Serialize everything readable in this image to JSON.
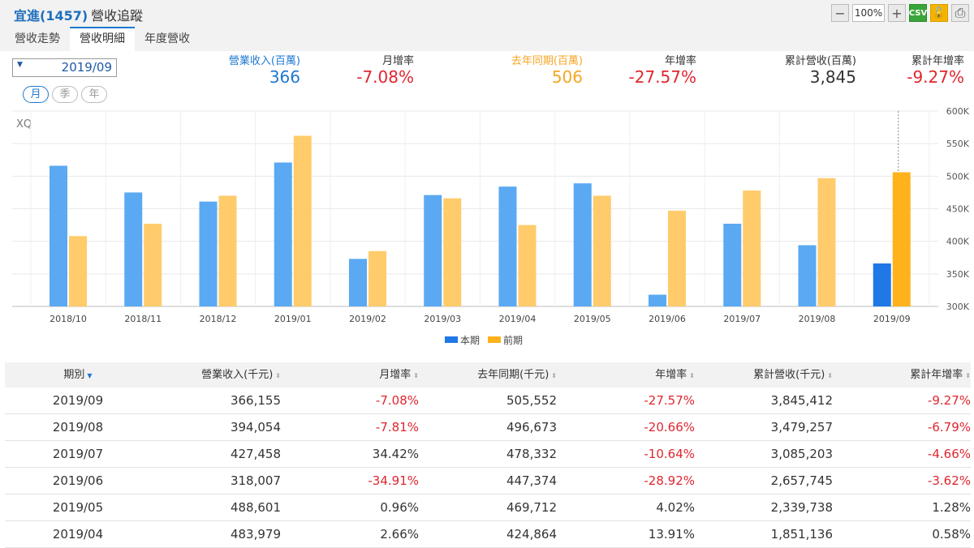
{
  "header": {
    "stock": "宜進(1457)",
    "title": "營收追蹤",
    "zoom": "100%",
    "csv_label": "CSV"
  },
  "tabs": [
    {
      "label": "營收走勢",
      "active": false
    },
    {
      "label": "營收明細",
      "active": true
    },
    {
      "label": "年度營收",
      "active": false
    }
  ],
  "date_select": {
    "value": "2019/09"
  },
  "period_buttons": [
    {
      "label": "月",
      "active": true
    },
    {
      "label": "季",
      "active": false
    },
    {
      "label": "年",
      "active": false
    }
  ],
  "summary": {
    "revenue": {
      "label": "營業收入(百萬)",
      "value": "366",
      "color": "#1f78d1"
    },
    "mom": {
      "label": "月增率",
      "value": "-7.08%",
      "color": "#e0262f"
    },
    "last_year": {
      "label": "去年同期(百萬)",
      "value": "506",
      "color": "#f5a623"
    },
    "yoy": {
      "label": "年增率",
      "value": "-27.57%",
      "color": "#e0262f"
    },
    "cumulative": {
      "label": "累計營收(百萬)",
      "value": "3,845",
      "color": "#333333"
    },
    "cum_yoy": {
      "label": "累計年增率",
      "value": "-9.27%",
      "color": "#e0262f"
    }
  },
  "chart_data": {
    "type": "bar",
    "watermark": "XQ",
    "categories": [
      "2018/10",
      "2018/11",
      "2018/12",
      "2019/01",
      "2019/02",
      "2019/03",
      "2019/04",
      "2019/05",
      "2019/06",
      "2019/07",
      "2019/08",
      "2019/09"
    ],
    "series": [
      {
        "name": "本期",
        "color": "#5aa9f2",
        "highlight_color": "#1f78e6",
        "values": [
          516,
          475,
          461,
          521,
          373,
          471,
          484,
          489,
          318,
          427,
          394,
          366
        ]
      },
      {
        "name": "前期",
        "color": "#ffcb6b",
        "highlight_color": "#ffb21c",
        "values": [
          408,
          427,
          470,
          562,
          385,
          466,
          425,
          470,
          447,
          478,
          497,
          506
        ]
      }
    ],
    "ylim": [
      300,
      600
    ],
    "y_ticks": [
      "300K",
      "350K",
      "400K",
      "450K",
      "500K",
      "550K",
      "600K"
    ],
    "y_tick_values": [
      300,
      350,
      400,
      450,
      500,
      550,
      600
    ],
    "grid": true,
    "legend_position": "bottom-center"
  },
  "table": {
    "headers": [
      "期別",
      "營業收入(千元)",
      "月增率",
      "去年同期(千元)",
      "年增率",
      "累計營收(千元)",
      "累計年增率"
    ],
    "rows": [
      [
        "2019/09",
        "366,155",
        "-7.08%",
        "505,552",
        "-27.57%",
        "3,845,412",
        "-9.27%"
      ],
      [
        "2019/08",
        "394,054",
        "-7.81%",
        "496,673",
        "-20.66%",
        "3,479,257",
        "-6.79%"
      ],
      [
        "2019/07",
        "427,458",
        "34.42%",
        "478,332",
        "-10.64%",
        "3,085,203",
        "-4.66%"
      ],
      [
        "2019/06",
        "318,007",
        "-34.91%",
        "447,374",
        "-28.92%",
        "2,657,745",
        "-3.62%"
      ],
      [
        "2019/05",
        "488,601",
        "0.96%",
        "469,712",
        "4.02%",
        "2,339,738",
        "1.28%"
      ],
      [
        "2019/04",
        "483,979",
        "2.66%",
        "424,864",
        "13.91%",
        "1,851,136",
        "0.58%"
      ]
    ]
  }
}
